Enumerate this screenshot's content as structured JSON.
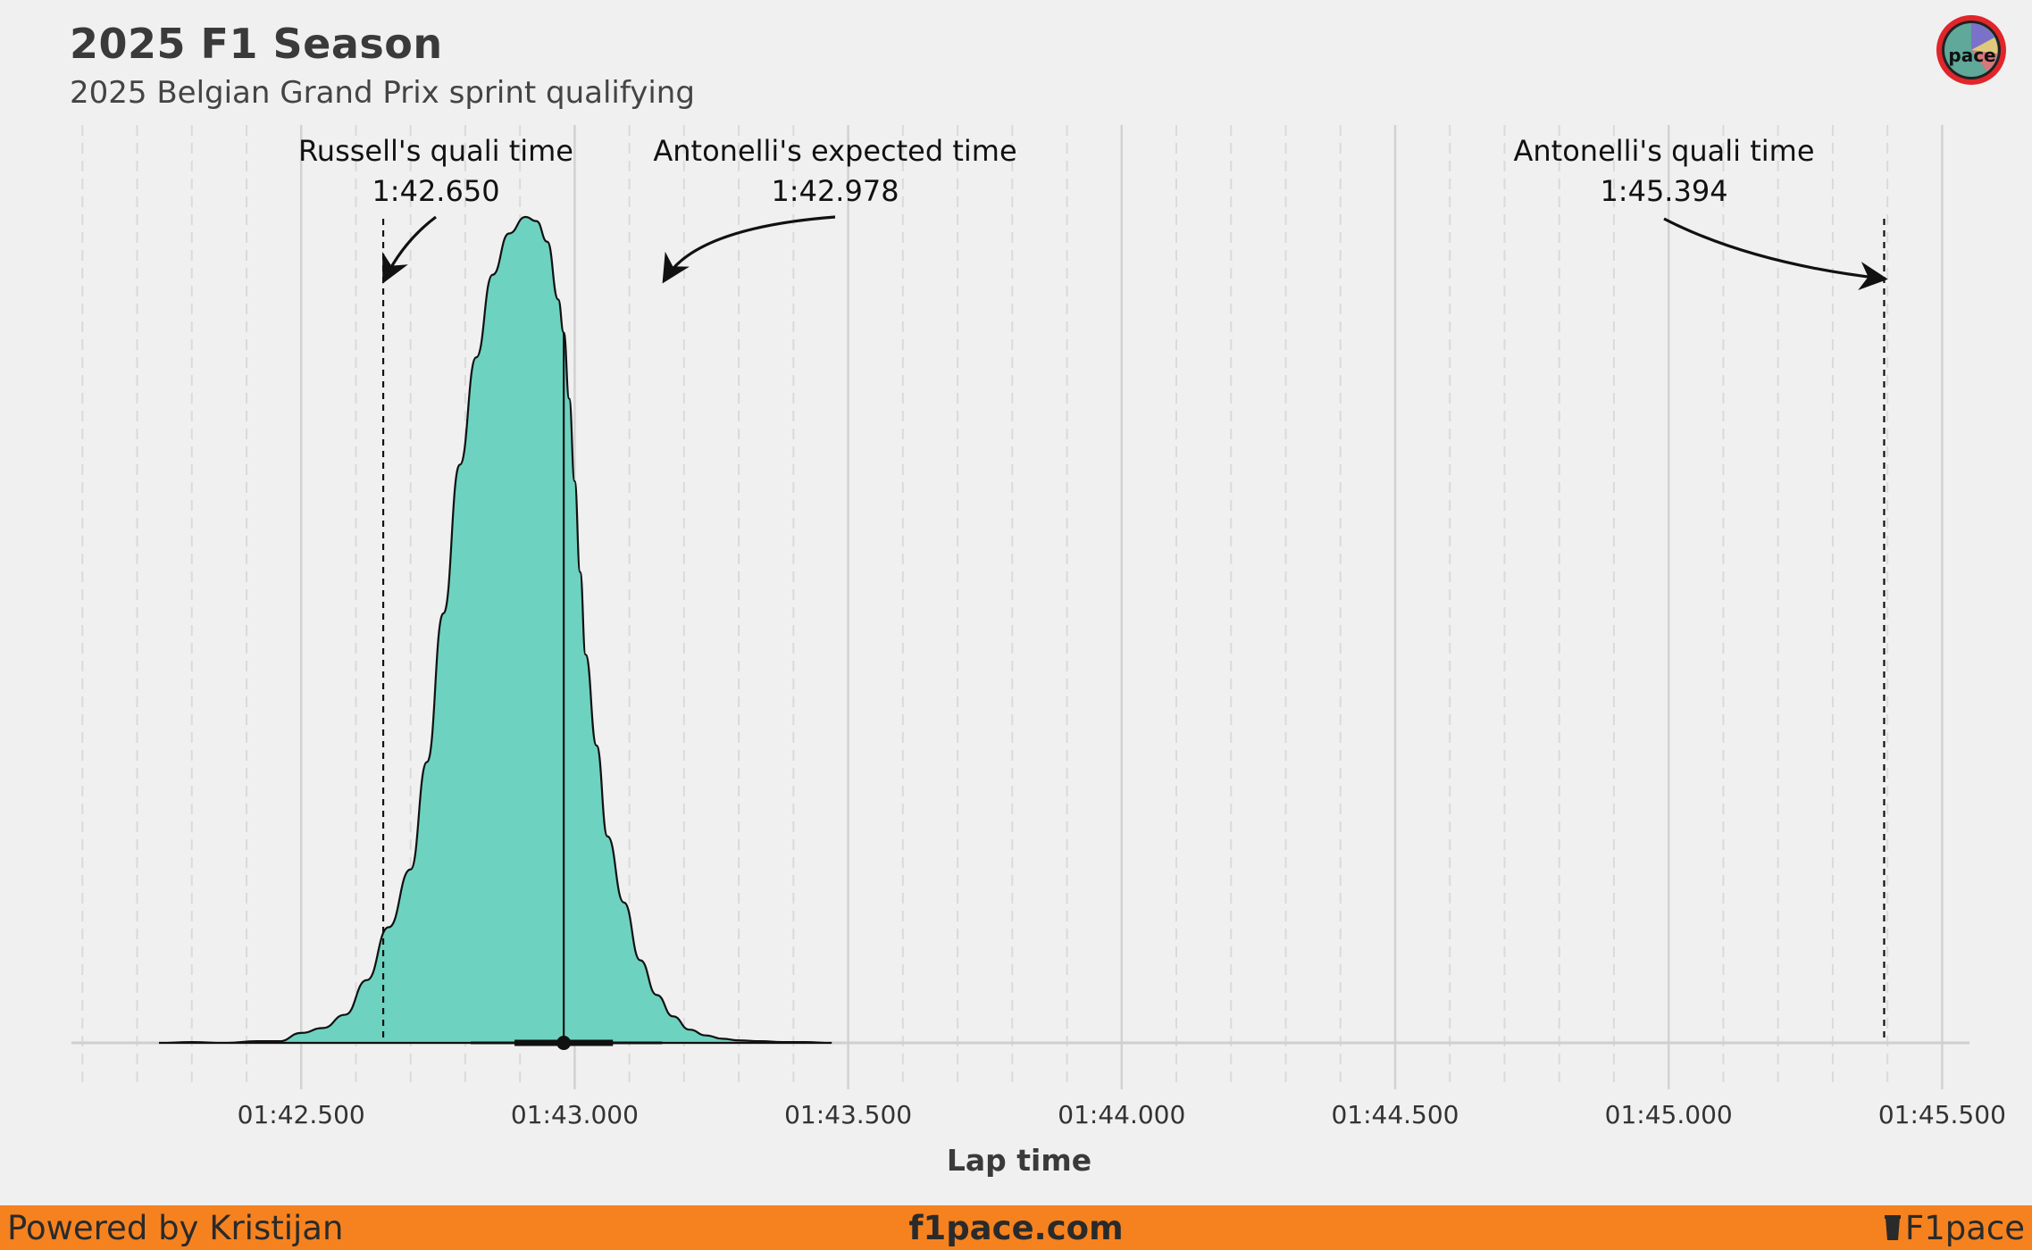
{
  "header": {
    "title": "2025 F1 Season",
    "subtitle": "2025 Belgian Grand Prix sprint qualifying"
  },
  "footer": {
    "left": "Powered by Kristijan",
    "center": "f1pace.com",
    "right": "F1pace"
  },
  "logo": {
    "icon": "pace-logo-icon",
    "text": "pace"
  },
  "colors": {
    "fill": "#6dd3c0",
    "footer": "#f5821f",
    "logo_ring": "#e0262b"
  },
  "chart_data": {
    "type": "area",
    "title": "2025 F1 Season",
    "subtitle": "2025 Belgian Grand Prix sprint qualifying",
    "xlabel": "Lap time",
    "ylabel": "",
    "x_unit": "seconds",
    "xlim": [
      102.08,
      105.55
    ],
    "x_ticks": [
      102.5,
      103.0,
      103.5,
      104.0,
      104.5,
      105.0,
      105.5
    ],
    "x_tick_labels": [
      "01:42.500",
      "01:43.000",
      "01:43.500",
      "01:44.000",
      "01:44.500",
      "01:45.000",
      "01:45.500"
    ],
    "grid": {
      "major": true,
      "minor_dashed": true
    },
    "density": {
      "x": [
        102.24,
        102.3,
        102.36,
        102.42,
        102.46,
        102.5,
        102.54,
        102.58,
        102.62,
        102.66,
        102.7,
        102.73,
        102.76,
        102.79,
        102.82,
        102.85,
        102.88,
        102.91,
        102.93,
        102.95,
        102.97,
        102.98,
        102.99,
        103.0,
        103.01,
        103.02,
        103.04,
        103.06,
        103.09,
        103.12,
        103.15,
        103.18,
        103.21,
        103.24,
        103.27,
        103.3,
        103.34,
        103.38,
        103.42,
        103.47
      ],
      "y": [
        0.0,
        0.001,
        0.0,
        0.002,
        0.002,
        0.012,
        0.018,
        0.034,
        0.076,
        0.14,
        0.21,
        0.34,
        0.52,
        0.7,
        0.83,
        0.93,
        0.98,
        1.0,
        0.995,
        0.97,
        0.9,
        0.86,
        0.78,
        0.68,
        0.57,
        0.47,
        0.36,
        0.25,
        0.17,
        0.1,
        0.058,
        0.032,
        0.016,
        0.009,
        0.005,
        0.003,
        0.002,
        0.001,
        0.001,
        0.0
      ]
    },
    "median": 102.98,
    "point": 102.98,
    "interval_thick": [
      102.89,
      103.07
    ],
    "interval_thin": [
      102.81,
      103.16
    ],
    "reference_lines": [
      {
        "x": 102.65,
        "style": "dashed"
      },
      {
        "x": 105.394,
        "style": "dashed"
      }
    ],
    "annotations": [
      {
        "label": "Russell's quali time",
        "value": "1:42.650",
        "x": 102.65
      },
      {
        "label": "Antonelli's expected time",
        "value": "1:42.978",
        "x": 102.978
      },
      {
        "label": "Antonelli's quali time",
        "value": "1:45.394",
        "x": 105.394
      }
    ]
  }
}
